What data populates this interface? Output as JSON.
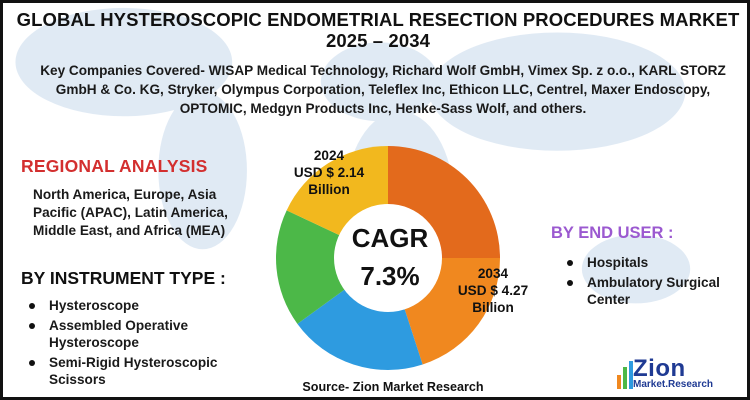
{
  "title_line1": "GLOBAL HYSTEROSCOPIC ENDOMETRIAL RESECTION PROCEDURES MARKET",
  "title_line2": "2025 – 2034",
  "companies": "Key Companies Covered- WISAP Medical Technology, Richard Wolf GmbH, Vimex Sp. z o.o., KARL STORZ GmbH & Co. KG, Stryker, Olympus Corporation, Teleflex Inc, Ethicon LLC, Centrel, Maxer Endoscopy, OPTOMIC, Medgyn Products Inc, Henke-Sass Wolf, and others.",
  "regional": {
    "heading": "REGIONAL ANALYSIS",
    "text": "North America, Europe, Asia Pacific (APAC), Latin America, Middle East, and Africa (MEA)"
  },
  "instrument": {
    "heading": "BY INSTRUMENT TYPE :",
    "items": [
      "Hysteroscope",
      "Assembled Operative Hysteroscope",
      "Semi-Rigid Hysteroscopic Scissors"
    ]
  },
  "end_user": {
    "heading": "BY END USER :",
    "items": [
      "Hospitals",
      "Ambulatory Surgical Center"
    ]
  },
  "market": {
    "y2024": {
      "year": "2024",
      "value": "USD $ 2.14",
      "unit": "Billion"
    },
    "y2034": {
      "year": "2034",
      "value": "USD $ 4.27",
      "unit": "Billion"
    },
    "cagr_label": "CAGR",
    "cagr_value": "7.3%"
  },
  "donut": {
    "segments": [
      {
        "color": "#e36a1c",
        "share": 0.25
      },
      {
        "color": "#f0881f",
        "share": 0.2
      },
      {
        "color": "#2e9be0",
        "share": 0.2
      },
      {
        "color": "#4cb848",
        "share": 0.17
      },
      {
        "color": "#f2b81e",
        "share": 0.18
      }
    ]
  },
  "source": "Source- Zion Market Research",
  "logo": {
    "name": "Zion",
    "tagline": "Market.Research"
  },
  "colors": {
    "accent_red": "#d32f2f",
    "accent_purple": "#9b59d0",
    "brand_blue": "#1f3a93"
  }
}
